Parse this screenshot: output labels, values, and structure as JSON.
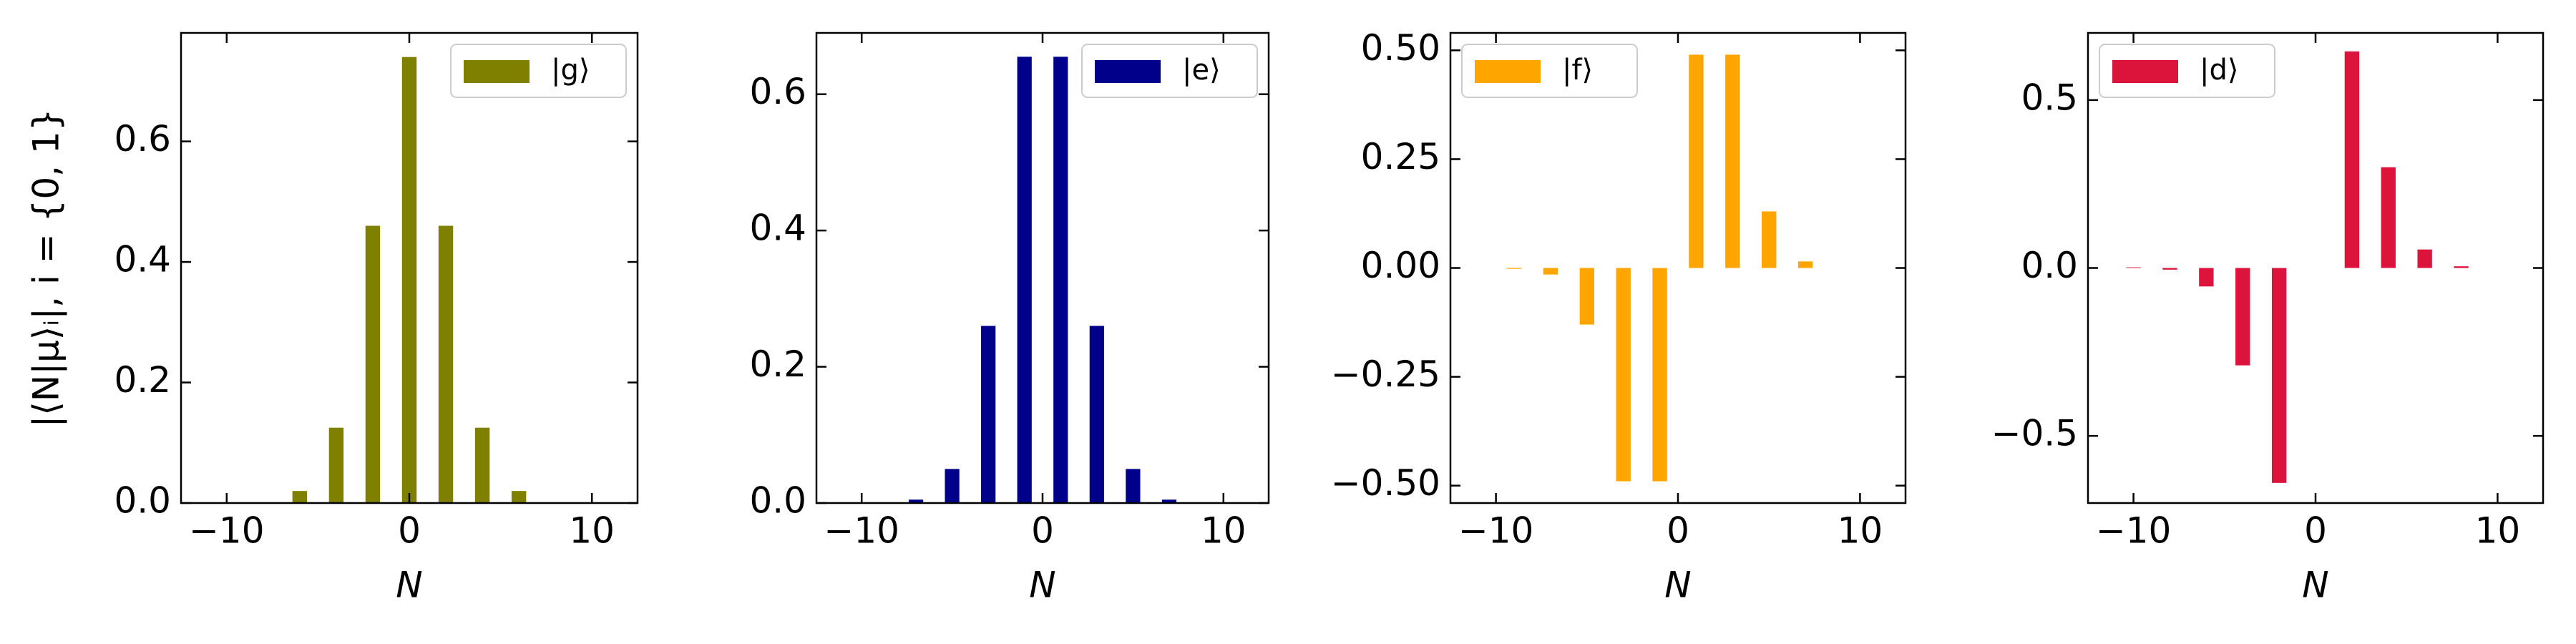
{
  "chart_data": [
    {
      "type": "bar",
      "ylabel": "|⟨N|μ⟩ᵢ|,  i = {0, 1}",
      "xlabel": "N",
      "x": [
        -6,
        -4,
        -2,
        0,
        2,
        4,
        6
      ],
      "series": [
        {
          "name": "|g⟩",
          "color": "#808000",
          "values": [
            0.02,
            0.125,
            0.46,
            0.74,
            0.46,
            0.125,
            0.02
          ]
        }
      ],
      "xlim": [
        -12.5,
        12.5
      ],
      "xticks": [
        {
          "value": -10,
          "label": "−10"
        },
        0,
        10
      ],
      "ylim": [
        0,
        0.78
      ],
      "yticks": [
        {
          "value": 0,
          "label": "0.0"
        },
        0.2,
        0.4,
        0.6
      ],
      "legend": "upper right"
    },
    {
      "type": "bar",
      "xlabel": "N",
      "x": [
        -7,
        -5,
        -3,
        -1,
        1,
        3,
        5,
        7
      ],
      "series": [
        {
          "name": "|e⟩",
          "color": "#00008b",
          "values": [
            0.005,
            0.05,
            0.26,
            0.655,
            0.655,
            0.26,
            0.05,
            0.005
          ]
        }
      ],
      "xlim": [
        -12.5,
        12.5
      ],
      "xticks": [
        {
          "value": -10,
          "label": "−10"
        },
        0,
        10
      ],
      "ylim": [
        0,
        0.69
      ],
      "yticks": [
        {
          "value": 0,
          "label": "0.0"
        },
        0.2,
        0.4,
        0.6
      ],
      "legend": "upper right"
    },
    {
      "type": "bar",
      "xlabel": "N",
      "x": [
        -9,
        -7,
        -5,
        -3,
        -1,
        1,
        3,
        5,
        7
      ],
      "series": [
        {
          "name": "|f⟩",
          "color": "#ffa500",
          "values": [
            -0.002,
            -0.015,
            -0.13,
            -0.49,
            -0.49,
            0.49,
            0.49,
            0.13,
            0.015
          ]
        }
      ],
      "xlim": [
        -12.5,
        12.5
      ],
      "xticks": [
        {
          "value": -10,
          "label": "−10"
        },
        0,
        10
      ],
      "ylim": [
        -0.54,
        0.54
      ],
      "yticks": [
        {
          "value": -0.5,
          "label": "−0.50"
        },
        {
          "value": -0.25,
          "label": "−0.25"
        },
        {
          "value": 0,
          "label": "0.00"
        },
        0.25,
        {
          "value": 0.5,
          "label": "0.50"
        }
      ],
      "legend": "upper left"
    },
    {
      "type": "bar",
      "xlabel": "N",
      "x": [
        -10,
        -8,
        -6,
        -4,
        -2,
        2,
        4,
        6,
        8
      ],
      "series": [
        {
          "name": "|d⟩",
          "color": "#dc143c",
          "values": [
            0.002,
            -0.005,
            -0.055,
            -0.29,
            -0.64,
            0.645,
            0.3,
            0.055,
            0.005
          ]
        }
      ],
      "xlim": [
        -12.5,
        12.5
      ],
      "xticks": [
        {
          "value": -10,
          "label": "−10"
        },
        0,
        10
      ],
      "ylim": [
        -0.7,
        0.7
      ],
      "yticks": [
        {
          "value": -0.5,
          "label": "−0.5"
        },
        {
          "value": 0,
          "label": "0.0"
        },
        0.5
      ],
      "legend": "upper left"
    }
  ]
}
